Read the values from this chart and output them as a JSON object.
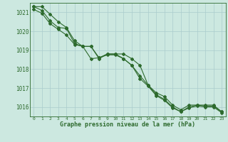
{
  "line1": [
    1021.3,
    1021.3,
    1020.9,
    1020.5,
    1020.2,
    1019.5,
    1019.2,
    1019.2,
    1018.55,
    1018.8,
    1018.8,
    1018.8,
    1018.55,
    1018.2,
    1017.15,
    1016.75,
    1016.55,
    1016.1,
    1015.85,
    1016.1,
    1016.1,
    1016.1,
    1016.1,
    1015.75
  ],
  "line2": [
    1021.3,
    1021.1,
    1020.55,
    1020.2,
    1020.15,
    1019.35,
    1019.2,
    1019.2,
    1018.6,
    1018.75,
    1018.75,
    1018.55,
    1018.2,
    1017.65,
    1017.15,
    1016.65,
    1016.4,
    1016.0,
    1015.75,
    1016.0,
    1016.1,
    1016.05,
    1016.05,
    1015.75
  ],
  "line3": [
    1021.15,
    1020.95,
    1020.4,
    1020.1,
    1019.8,
    1019.3,
    1019.2,
    1018.55,
    1018.6,
    1018.8,
    1018.8,
    1018.55,
    1018.2,
    1017.5,
    1017.1,
    1016.6,
    1016.35,
    1015.95,
    1015.75,
    1015.95,
    1016.05,
    1016.0,
    1016.0,
    1015.7
  ],
  "x": [
    0,
    1,
    2,
    3,
    4,
    5,
    6,
    7,
    8,
    9,
    10,
    11,
    12,
    13,
    14,
    15,
    16,
    17,
    18,
    19,
    20,
    21,
    22,
    23
  ],
  "ylim": [
    1015.5,
    1021.5
  ],
  "yticks": [
    1016,
    1017,
    1018,
    1019,
    1020,
    1021
  ],
  "xtick_labels": [
    "0",
    "1",
    "2",
    "3",
    "4",
    "5",
    "6",
    "7",
    "8",
    "9",
    "10",
    "11",
    "12",
    "13",
    "14",
    "15",
    "16",
    "17",
    "18",
    "19",
    "20",
    "21",
    "22",
    "23"
  ],
  "line_color": "#2d6a2d",
  "bg_color": "#cce8e0",
  "grid_color": "#aacccc",
  "xlabel": "Graphe pression niveau de la mer (hPa)",
  "xlabel_color": "#2d6a2d",
  "marker": "D",
  "marker_size": 2.0,
  "line_width": 0.8
}
